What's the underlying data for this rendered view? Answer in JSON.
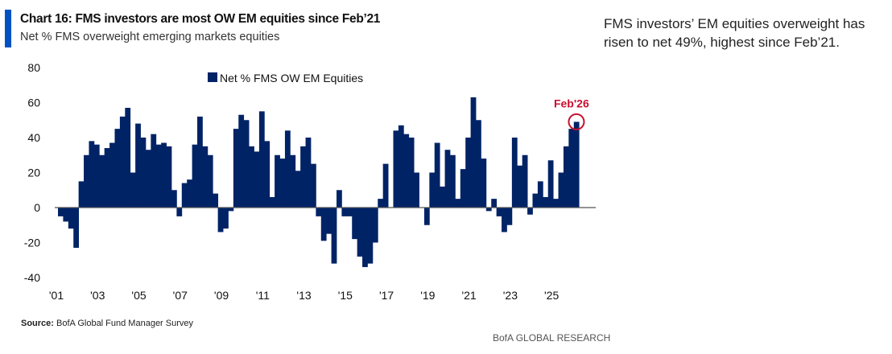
{
  "header": {
    "title": "Chart 16: FMS investors are most OW EM equities since Feb’21",
    "subtitle": "Net % FMS overweight emerging markets equities"
  },
  "side_note": "FMS investors’ EM equities overweight has risen to net 49%, highest since Feb’21.",
  "footer": {
    "source_label": "Source:",
    "source_text": "BofA Global Fund Manager Survey",
    "brand": "BofA GLOBAL RESEARCH"
  },
  "colors": {
    "bar": "#002366",
    "accent": "#0052c2",
    "annotation": "#c8102e"
  },
  "chart_data": {
    "type": "bar",
    "title": "Chart 16: FMS investors are most OW EM equities since Feb’21",
    "xlabel": "",
    "ylabel": "",
    "ylim": [
      -40,
      80
    ],
    "yticks": [
      80,
      60,
      40,
      20,
      0,
      -20,
      -40
    ],
    "xtick_labels": [
      "'01",
      "'03",
      "'05",
      "'07",
      "'09",
      "'11",
      "'13",
      "'15",
      "'17",
      "'19",
      "'21",
      "'23",
      "'25"
    ],
    "xtick_years": [
      2001,
      2003,
      2005,
      2007,
      2009,
      2011,
      2013,
      2015,
      2017,
      2019,
      2021,
      2023,
      2025
    ],
    "frequency": "quarterly (approx.)",
    "start_year": 2001,
    "legend": {
      "label": "Net % FMS OW EM Equities",
      "position": "top-center"
    },
    "annotation": {
      "label": "Feb'26",
      "value": 49
    },
    "values": [
      -5,
      -8,
      -12,
      -23,
      15,
      30,
      38,
      36,
      30,
      34,
      37,
      45,
      52,
      57,
      20,
      48,
      40,
      33,
      42,
      36,
      37,
      35,
      10,
      -5,
      14,
      16,
      36,
      52,
      35,
      30,
      8,
      -14,
      -12,
      -2,
      45,
      53,
      50,
      35,
      32,
      55,
      38,
      6,
      30,
      28,
      44,
      30,
      21,
      35,
      40,
      25,
      -5,
      -19,
      -15,
      -32,
      10,
      -5,
      -5,
      -18,
      -28,
      -34,
      -32,
      -20,
      5,
      25,
      0,
      44,
      47,
      42,
      40,
      20,
      0,
      -10,
      20,
      37,
      12,
      33,
      30,
      5,
      22,
      40,
      63,
      50,
      28,
      -2,
      5,
      -5,
      -14,
      -10,
      40,
      24,
      30,
      -4,
      8,
      15,
      6,
      27,
      5,
      20,
      35,
      45,
      49
    ]
  }
}
